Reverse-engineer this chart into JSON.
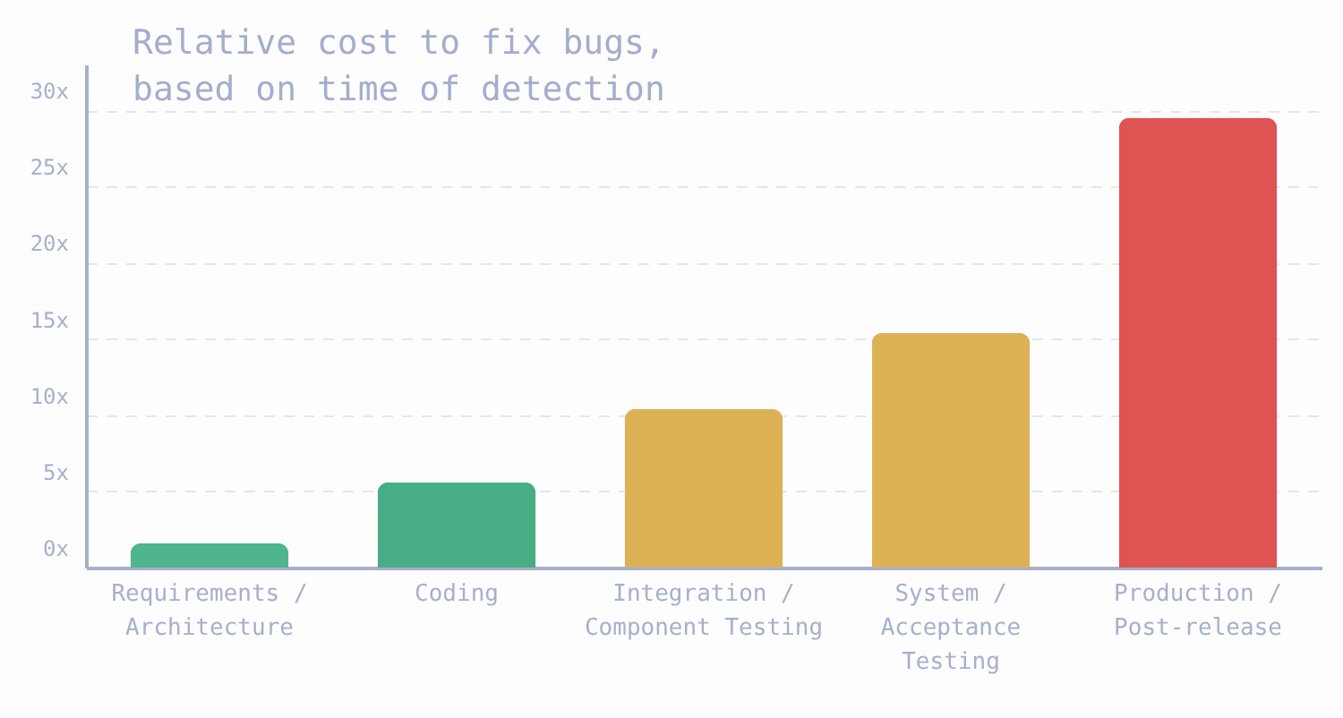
{
  "chart_data": {
    "type": "bar",
    "title": "Relative cost to fix bugs,\nbased on time of detection",
    "categories": [
      "Requirements /\nArchitecture",
      "Coding",
      "Integration /\nComponent Testing",
      "System /\nAcceptance\nTesting",
      "Production /\nPost-release"
    ],
    "values": [
      1.6,
      5.6,
      10.4,
      15.4,
      29.5
    ],
    "colors": [
      "#4fb58c",
      "#47ad84",
      "#ddb257",
      "#ddb257",
      "#e05353"
    ],
    "ylim": [
      0,
      33
    ],
    "yticks": [
      {
        "value": 0,
        "label": "0x"
      },
      {
        "value": 5,
        "label": "5x"
      },
      {
        "value": 10,
        "label": "10x"
      },
      {
        "value": 15,
        "label": "15x"
      },
      {
        "value": 20,
        "label": "20x"
      },
      {
        "value": 25,
        "label": "25x"
      },
      {
        "value": 30,
        "label": "30x"
      }
    ],
    "grid": "y"
  }
}
